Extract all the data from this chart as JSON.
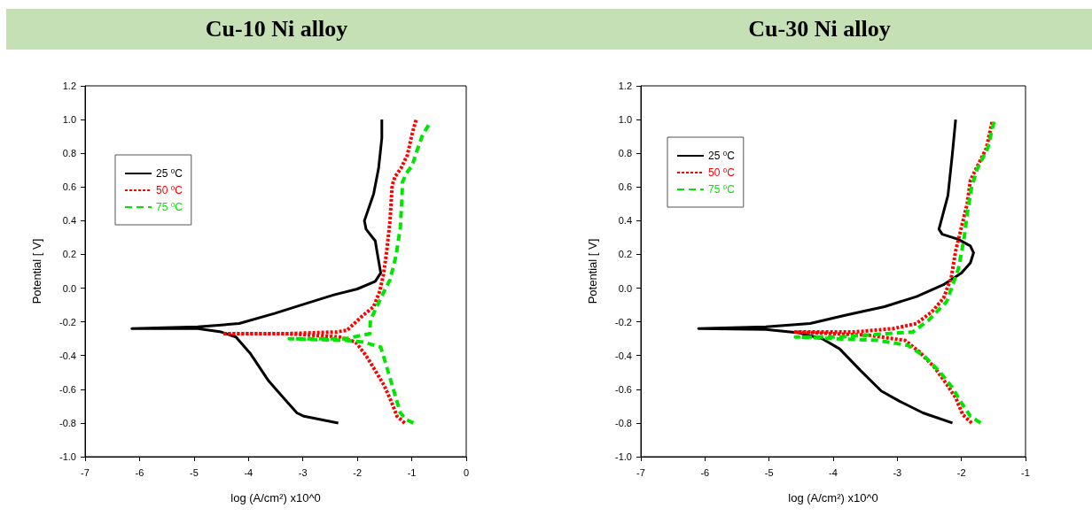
{
  "chart_data": [
    {
      "type": "line",
      "title": "Cu-10 Ni alloy",
      "xlabel": "log (A/cm²) x10^0",
      "ylabel": "Potential [ V]",
      "xlim": [
        -7,
        0
      ],
      "xticks": [
        -7,
        -6,
        -5,
        -4,
        -3,
        -2,
        -1,
        0
      ],
      "ylim": [
        -1,
        1.2
      ],
      "yticks": [
        {
          "value": -1,
          "label": "-1.0"
        },
        -0.8,
        -0.6,
        -0.4,
        -0.2,
        {
          "value": 0,
          "label": "0.0"
        },
        0.2,
        0.4,
        0.6,
        0.8,
        {
          "value": 1,
          "label": "1.0"
        },
        1.2
      ],
      "grid": false,
      "legend": "top left",
      "marker": "none",
      "series": [
        {
          "name": "25 $^{0}$C",
          "color": "#000000",
          "line_style": "solid",
          "x": [
            -2.35,
            -2.98,
            -3.11,
            -3.36,
            -3.63,
            -3.96,
            -4.23,
            -4.5,
            -4.93,
            -6.14,
            -4.93,
            -4.17,
            -3.52,
            -3.03,
            -2.43,
            -2.0,
            -1.67,
            -1.57,
            -1.64,
            -1.67,
            -1.84,
            -1.87,
            -1.7,
            -1.61,
            -1.55,
            -1.55
          ],
          "values": [
            -0.8,
            -0.76,
            -0.74,
            -0.65,
            -0.55,
            -0.39,
            -0.29,
            -0.26,
            -0.24,
            -0.24,
            -0.23,
            -0.21,
            -0.15,
            -0.1,
            -0.04,
            -0.005,
            0.04,
            0.09,
            0.22,
            0.28,
            0.35,
            0.4,
            0.56,
            0.71,
            0.89,
            1.0
          ]
        },
        {
          "name": "50 $^{0}$C",
          "color": "#ff0000",
          "line_style": "dotted",
          "x": [
            -1.13,
            -1.27,
            -1.38,
            -1.51,
            -1.67,
            -1.84,
            -2.03,
            -2.33,
            -3.3,
            -4.47,
            -3.3,
            -2.38,
            -2.19,
            -1.89,
            -1.7,
            -1.59,
            -1.52,
            -1.46,
            -1.4,
            -1.36,
            -1.31,
            -1.2,
            -1.08,
            -0.99,
            -0.92
          ],
          "values": [
            -0.8,
            -0.76,
            -0.67,
            -0.575,
            -0.49,
            -0.4,
            -0.32,
            -0.29,
            -0.27,
            -0.27,
            -0.27,
            -0.26,
            -0.25,
            -0.16,
            -0.11,
            -0.02,
            0.08,
            0.22,
            0.4,
            0.61,
            0.66,
            0.71,
            0.79,
            0.92,
            1.0
          ]
        },
        {
          "name": "75 $^{0}$C",
          "color": "#00e600",
          "line_style": "dashed",
          "x": [
            -0.97,
            -1.1,
            -1.21,
            -1.32,
            -1.43,
            -1.57,
            -1.89,
            -2.22,
            -3.25,
            -2.22,
            -1.77,
            -1.76,
            -1.57,
            -1.4,
            -1.29,
            -1.21,
            -1.18,
            -1.17,
            -1.1,
            -0.99,
            -0.91,
            -0.8,
            -0.685
          ],
          "values": [
            -0.8,
            -0.78,
            -0.74,
            -0.62,
            -0.5,
            -0.35,
            -0.32,
            -0.31,
            -0.3,
            -0.3,
            -0.27,
            -0.19,
            -0.06,
            0.05,
            0.19,
            0.36,
            0.54,
            0.63,
            0.68,
            0.73,
            0.81,
            0.91,
            0.97
          ]
        }
      ]
    },
    {
      "type": "line",
      "title": "Cu-30 Ni alloy",
      "xlabel": "log (A/cm²) x10^0",
      "ylabel": "Potential [ V]",
      "xlim": [
        -7,
        -1
      ],
      "xticks": [
        -7,
        -6,
        -5,
        -4,
        -3,
        -2,
        -1
      ],
      "ylim": [
        -1,
        1.2
      ],
      "yticks": [
        {
          "value": -1,
          "label": "-1.0"
        },
        -0.8,
        -0.6,
        -0.4,
        -0.2,
        {
          "value": 0,
          "label": "0.0"
        },
        0.2,
        0.4,
        0.6,
        0.8,
        {
          "value": 1,
          "label": "1.0"
        },
        1.2
      ],
      "grid": false,
      "legend": "top left",
      "marker": "none",
      "series": [
        {
          "name": "25 $^{0}$C",
          "color": "#000000",
          "line_style": "solid",
          "x": [
            -2.14,
            -2.6,
            -2.97,
            -3.25,
            -3.57,
            -3.9,
            -4.17,
            -4.54,
            -5.05,
            -6.1,
            -5.05,
            -4.36,
            -3.8,
            -3.2,
            -2.7,
            -2.28,
            -2.0,
            -1.86,
            -1.81,
            -1.86,
            -2.05,
            -2.3,
            -2.35,
            -2.21,
            -2.14,
            -2.09
          ],
          "values": [
            -0.8,
            -0.74,
            -0.67,
            -0.61,
            -0.49,
            -0.36,
            -0.3,
            -0.265,
            -0.245,
            -0.24,
            -0.23,
            -0.21,
            -0.16,
            -0.11,
            -0.05,
            0.02,
            0.09,
            0.15,
            0.21,
            0.25,
            0.29,
            0.32,
            0.35,
            0.55,
            0.8,
            1.0
          ]
        },
        {
          "name": "50 $^{0}$C",
          "color": "#ff0000",
          "line_style": "dotted",
          "x": [
            -1.84,
            -1.98,
            -2.09,
            -2.23,
            -2.42,
            -2.65,
            -2.88,
            -3.43,
            -4.59,
            -3.67,
            -3.06,
            -2.7,
            -2.46,
            -2.28,
            -2.16,
            -2.09,
            -2.0,
            -1.91,
            -1.86,
            -1.73,
            -1.61,
            -1.52
          ],
          "values": [
            -0.8,
            -0.75,
            -0.65,
            -0.57,
            -0.47,
            -0.38,
            -0.31,
            -0.28,
            -0.26,
            -0.26,
            -0.24,
            -0.21,
            -0.14,
            -0.06,
            0.06,
            0.22,
            0.36,
            0.5,
            0.64,
            0.74,
            0.83,
            0.99
          ]
        },
        {
          "name": "75 $^{0}$C",
          "color": "#00e600",
          "line_style": "dashed",
          "x": [
            -1.7,
            -1.86,
            -2.0,
            -2.14,
            -2.33,
            -2.56,
            -2.83,
            -3.3,
            -4.59,
            -3.9,
            -3.16,
            -2.76,
            -2.51,
            -2.23,
            -2.05,
            -1.96,
            -1.91,
            -1.84,
            -1.75,
            -1.59,
            -1.49
          ],
          "values": [
            -0.8,
            -0.76,
            -0.68,
            -0.59,
            -0.5,
            -0.41,
            -0.34,
            -0.31,
            -0.29,
            -0.29,
            -0.27,
            -0.26,
            -0.19,
            -0.08,
            0.11,
            0.29,
            0.44,
            0.6,
            0.71,
            0.83,
            0.99
          ]
        }
      ]
    }
  ]
}
